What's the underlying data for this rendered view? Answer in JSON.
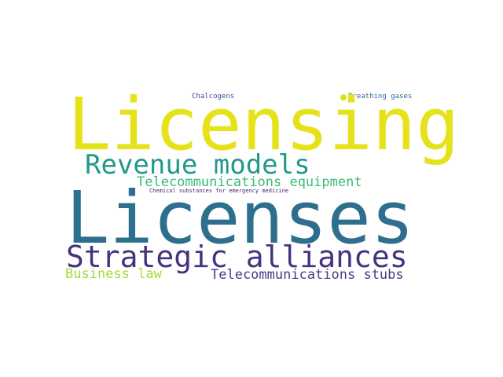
{
  "words": [
    {
      "key": "licensing",
      "text": "Licensing",
      "color": "#e6e21a"
    },
    {
      "key": "licenses",
      "text": "Licenses",
      "color": "#2e6f8e"
    },
    {
      "key": "revenue_models",
      "text": "Revenue models",
      "color": "#1f9a8a"
    },
    {
      "key": "strategic_alliances",
      "text": "Strategic alliances",
      "color": "#46327e"
    },
    {
      "key": "telecommunications_equipment",
      "text": "Telecommunications equipment",
      "color": "#3bbb75"
    },
    {
      "key": "business_law",
      "text": "Business law",
      "color": "#a5db36"
    },
    {
      "key": "telecommunications_stubs",
      "text": "Telecommunications stubs",
      "color": "#433e85"
    },
    {
      "key": "chalcogens",
      "text": "Chalcogens",
      "color": "#3e4a89"
    },
    {
      "key": "breathing_gases",
      "text": "Breathing gases",
      "color": "#31688e"
    },
    {
      "key": "chemical_substances",
      "text": "Chemical substances for emergency medicine",
      "color": "#482173"
    }
  ],
  "accent_dot_color": "#d8e219"
}
